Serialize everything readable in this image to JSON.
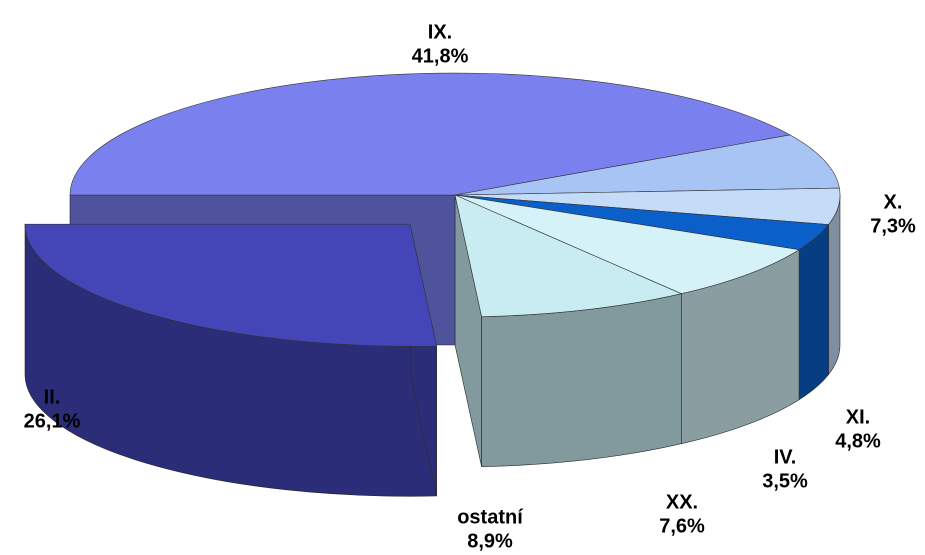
{
  "chart_data": {
    "type": "pie3d",
    "categories": [
      "IX.",
      "X.",
      "XI.",
      "IV.",
      "XX.",
      "ostatní",
      "II."
    ],
    "values": [
      41.8,
      7.3,
      4.8,
      3.5,
      7.6,
      8.9,
      26.1
    ],
    "value_labels": [
      "41,8%",
      "7,3%",
      "4,8%",
      "3,5%",
      "7,6%",
      "8,9%",
      "26,1%"
    ],
    "colors": [
      "#7a80ee",
      "#a8c4f4",
      "#c4dcf8",
      "#0b5fc8",
      "#d4f2f8",
      "#c8ecf2",
      "#4446b8"
    ],
    "exploded": [
      "II."
    ]
  }
}
